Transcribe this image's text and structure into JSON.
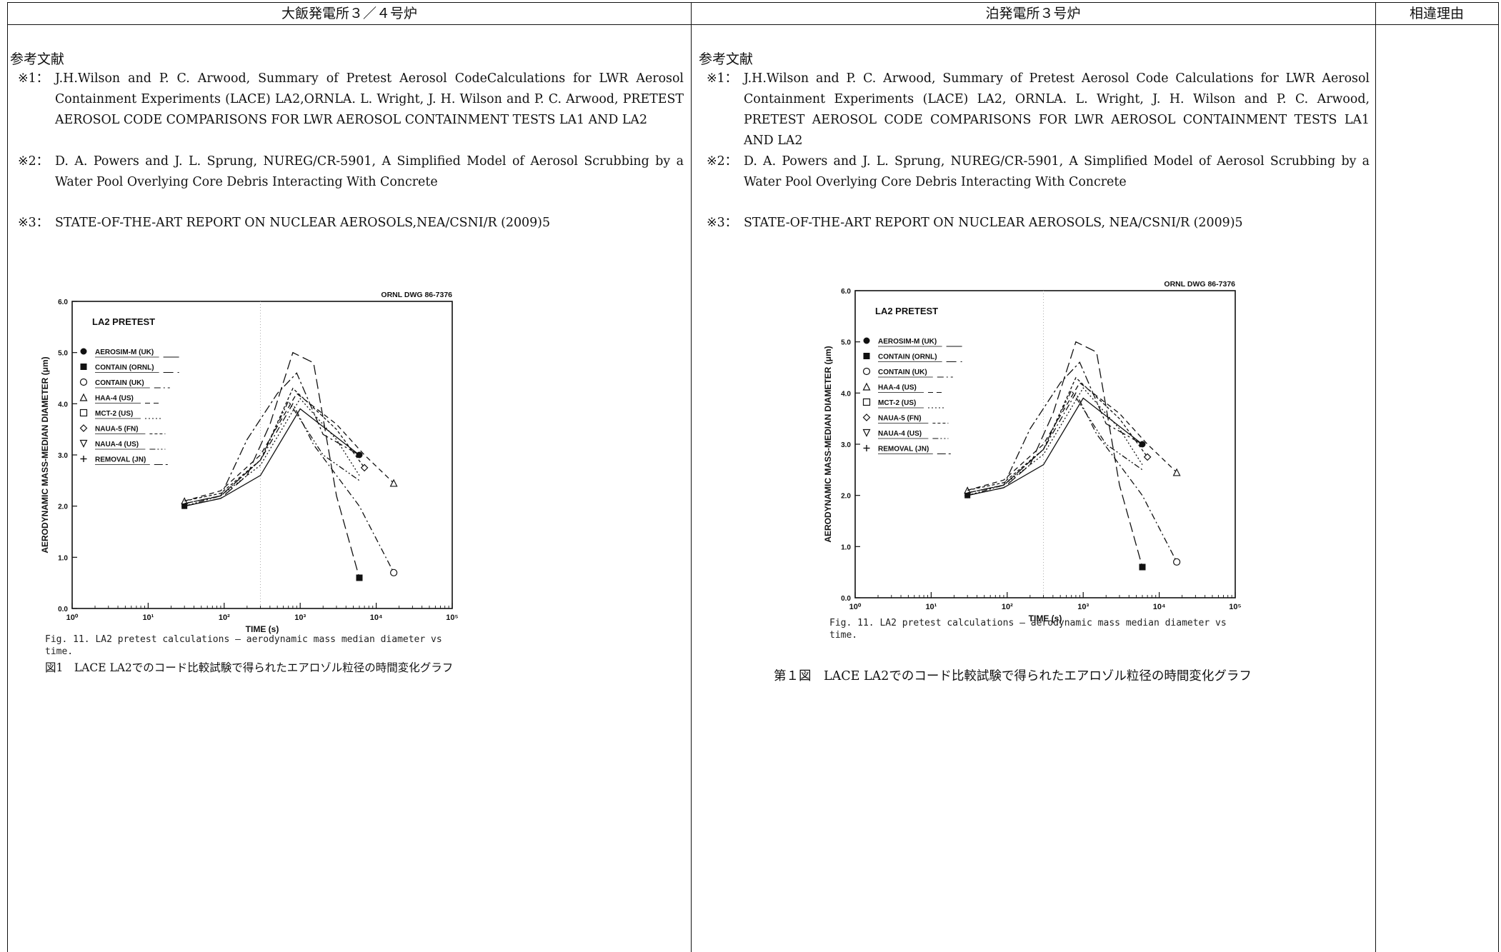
{
  "header": {
    "left": "大飯発電所３／４号炉",
    "middle": "泊発電所３号炉",
    "right": "相違理由"
  },
  "left": {
    "refs_title": "参考文献",
    "refs": [
      {
        "mark": "※1：",
        "text": "J.H.Wilson and P. C. Arwood, Summary of Pretest Aerosol CodeCalculations for LWR Aerosol Containment Experiments (LACE) LA2,ORNLA. L. Wright, J. H. Wilson and P. C. Arwood, PRETEST AEROSOL CODE COMPARISONS FOR LWR AEROSOL CONTAINMENT TESTS LA1 AND LA2"
      },
      {
        "mark": "※2：",
        "text": "D. A. Powers and J. L. Sprung, NUREG/CR-5901, A Simplified Model of Aerosol Scrubbing by a Water Pool Overlying Core Debris Interacting With Concrete"
      },
      {
        "mark": "※3：",
        "text": "STATE-OF-THE-ART REPORT ON NUCLEAR AEROSOLS,NEA/CSNI/R (2009)5"
      }
    ],
    "fig_caption": "Fig. 11.  LA2 pretest calculations — aerodynamic mass median diameter vs time.",
    "fig_title": "図1　LACE LA2でのコード比較試験で得られたエアロゾル粒径の時間変化グラフ"
  },
  "middle": {
    "refs_title": "参考文献",
    "refs": [
      {
        "mark": "※1：",
        "text": "J.H.Wilson and P. C. Arwood, Summary of Pretest Aerosol Code Calculations for LWR Aerosol Containment Experiments (LACE) LA2, ORNLA. L. Wright, J. H. Wilson and P. C. Arwood, PRETEST AEROSOL CODE COMPARISONS FOR LWR AEROSOL CONTAINMENT TESTS LA1 AND LA2"
      },
      {
        "mark": "※2：",
        "text": "D. A. Powers and J. L. Sprung, NUREG/CR-5901, A Simplified Model of Aerosol Scrubbing by a Water Pool Overlying Core Debris Interacting With Concrete"
      },
      {
        "mark": "※3：",
        "text": "STATE-OF-THE-ART REPORT ON NUCLEAR AEROSOLS, NEA/CSNI/R (2009)5"
      }
    ],
    "fig_caption": "Fig. 11.  LA2 pretest calculations — aerodynamic mass median diameter vs time.",
    "fig_title": "第１図　LACE LA2でのコード比較試験で得られたエアロゾル粒径の時間変化グラフ"
  },
  "chart_data": {
    "type": "line",
    "corner_label": "ORNL DWG 86-7376",
    "title": "LA2 PRETEST",
    "xlabel": "TIME (s)",
    "ylabel": "AERODYNAMIC MASS-MEDIAN DIAMETER (μm)",
    "xscale": "log",
    "xlim": [
      1,
      100000
    ],
    "ylim": [
      0,
      6
    ],
    "x_tick_labels": [
      "10⁰",
      "10¹",
      "10²",
      "10³",
      "10⁴",
      "10⁵"
    ],
    "y_tick_labels": [
      "0.0",
      "1.0",
      "2.0",
      "3.0",
      "4.0",
      "5.0",
      "6.0"
    ],
    "legend_placement": "upper-left",
    "legend": [
      {
        "marker": "filled-circle",
        "label": "AEROSIM-M (UK)"
      },
      {
        "marker": "filled-square",
        "label": "CONTAIN (ORNL)"
      },
      {
        "marker": "open-circle",
        "label": "CONTAIN (UK)"
      },
      {
        "marker": "open-triangle",
        "label": "HAA-4 (US)"
      },
      {
        "marker": "open-square",
        "label": "MCT-2 (US)"
      },
      {
        "marker": "open-diamond",
        "label": "NAUA-5 (FN)"
      },
      {
        "marker": "open-triangle-down",
        "label": "NAUA-4 (US)"
      },
      {
        "marker": "plus",
        "label": "REMOVAL (JN)"
      }
    ],
    "series": [
      {
        "legend_index": 0,
        "dash": "solid",
        "x": [
          30,
          90,
          300,
          1000,
          6000
        ],
        "y": [
          2.0,
          2.15,
          2.6,
          3.9,
          3.0
        ]
      },
      {
        "legend_index": 1,
        "dash": "long-dash",
        "x": [
          30,
          90,
          200,
          400,
          800,
          1500,
          3000,
          6000
        ],
        "y": [
          2.0,
          2.15,
          2.6,
          3.6,
          5.0,
          4.8,
          2.2,
          0.6
        ]
      },
      {
        "legend_index": 2,
        "dash": "dash-dot",
        "x": [
          30,
          90,
          300,
          800,
          1500,
          3000,
          6000,
          17000
        ],
        "y": [
          2.05,
          2.2,
          2.9,
          4.0,
          3.2,
          2.6,
          2.0,
          0.7
        ]
      },
      {
        "legend_index": 3,
        "dash": "dashed",
        "x": [
          30,
          90,
          300,
          900,
          3000,
          7000,
          17000
        ],
        "y": [
          2.1,
          2.3,
          3.0,
          4.2,
          3.6,
          3.0,
          2.45
        ]
      },
      {
        "legend_index": 4,
        "dash": "dotted",
        "x": [
          30,
          90,
          300,
          1000,
          3000,
          6000
        ],
        "y": [
          2.05,
          2.2,
          2.8,
          4.1,
          3.3,
          2.6
        ]
      },
      {
        "legend_index": 5,
        "dash": "short-dash",
        "x": [
          30,
          90,
          300,
          800,
          3000,
          7000
        ],
        "y": [
          2.1,
          2.25,
          2.9,
          4.3,
          3.5,
          2.75
        ]
      },
      {
        "legend_index": 6,
        "dash": "dash-dot-dot",
        "x": [
          30,
          90,
          300,
          700,
          2000,
          6000
        ],
        "y": [
          2.0,
          2.2,
          2.9,
          4.05,
          3.0,
          2.5
        ]
      },
      {
        "legend_index": 7,
        "dash": "long-dash-dot",
        "x": [
          30,
          90,
          200,
          500,
          900,
          2000,
          6000
        ],
        "y": [
          2.05,
          2.2,
          3.3,
          4.2,
          4.6,
          3.4,
          3.0
        ]
      }
    ]
  }
}
